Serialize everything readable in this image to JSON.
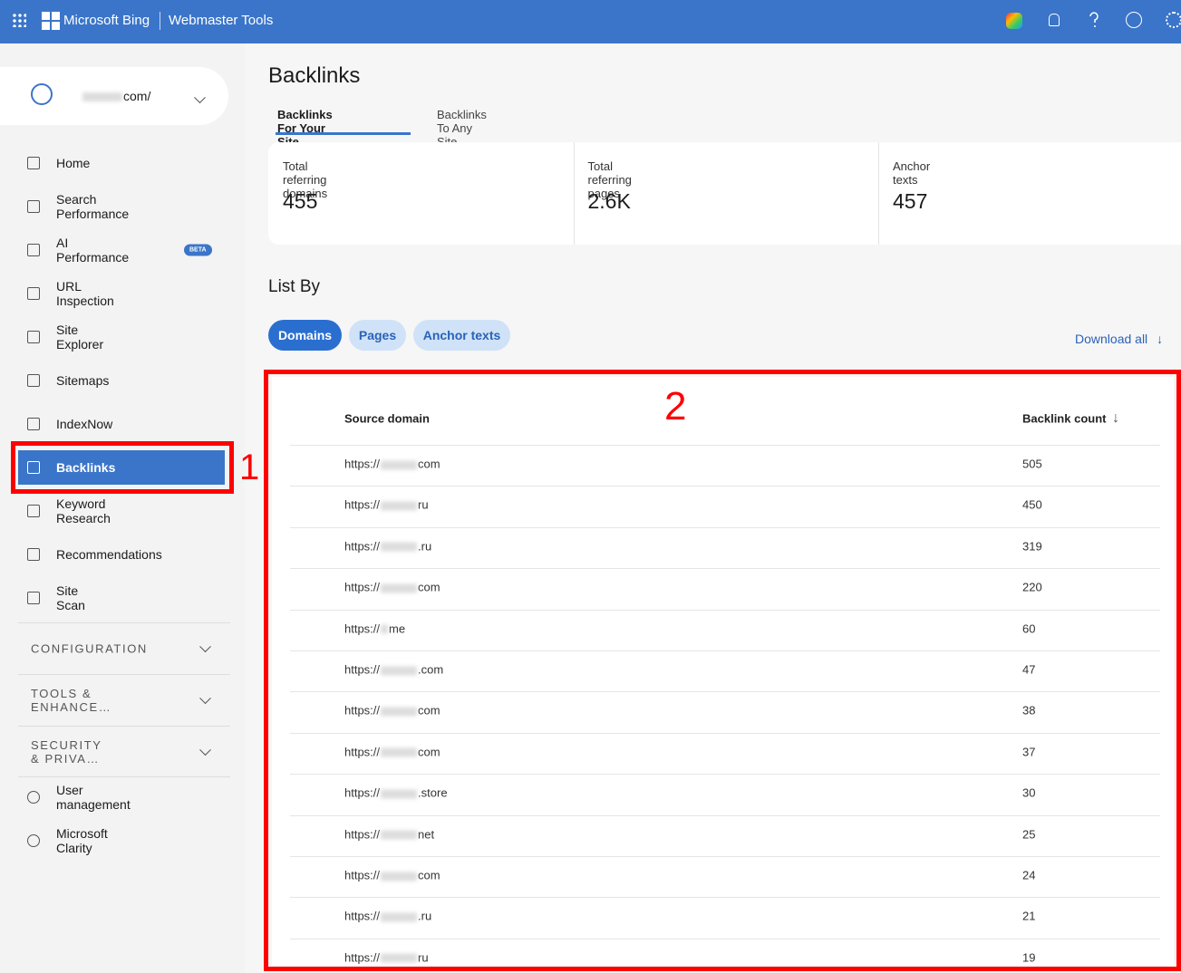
{
  "header": {
    "brand": "Microsoft Bing",
    "product": "Webmaster Tools"
  },
  "site": {
    "suffix": "com/"
  },
  "nav": {
    "items": [
      "Home",
      "Search Performance",
      "AI Performance",
      "URL Inspection",
      "Site Explorer",
      "Sitemaps",
      "IndexNow",
      "Backlinks",
      "Keyword Research",
      "Recommendations",
      "Site Scan"
    ],
    "beta": "BETA",
    "sections": [
      "CONFIGURATION",
      "TOOLS & ENHANCE…",
      "SECURITY & PRIVA…"
    ],
    "footer_items": [
      "User management",
      "Microsoft Clarity"
    ]
  },
  "page": {
    "title": "Backlinks",
    "tabs": [
      "Backlinks For Your Site",
      "Backlinks To Any Site"
    ],
    "stats": [
      {
        "label": "Total referring domains",
        "value": 455
      },
      {
        "label": "Total referring pages",
        "value": "2.6K"
      },
      {
        "label": "Anchor texts",
        "value": 457
      }
    ],
    "list_by": "List By",
    "filters": [
      "Domains",
      "Pages",
      "Anchor texts"
    ],
    "download": "Download all"
  },
  "table": {
    "headers": [
      "Source domain",
      "Backlink count"
    ],
    "rows": [
      {
        "prefix": "https://",
        "suffix": "com",
        "count": 505
      },
      {
        "prefix": "https://",
        "suffix": "ru",
        "count": 450
      },
      {
        "prefix": "https://",
        "suffix": ".ru",
        "count": 319
      },
      {
        "prefix": "https://",
        "suffix": "com",
        "count": 220
      },
      {
        "prefix": "https://",
        "suffix": "me",
        "count": 60
      },
      {
        "prefix": "https://",
        "suffix": ".com",
        "count": 47
      },
      {
        "prefix": "https://",
        "suffix": "com",
        "count": 38
      },
      {
        "prefix": "https://",
        "suffix": "com",
        "count": 37
      },
      {
        "prefix": "https://",
        "suffix": ".store",
        "count": 30
      },
      {
        "prefix": "https://",
        "suffix": "net",
        "count": 25
      },
      {
        "prefix": "https://",
        "suffix": "com",
        "count": 24
      },
      {
        "prefix": "https://",
        "suffix": ".ru",
        "count": 21
      },
      {
        "prefix": "https://",
        "suffix": "ru",
        "count": 19
      }
    ]
  },
  "annotations": [
    "1",
    "2"
  ]
}
